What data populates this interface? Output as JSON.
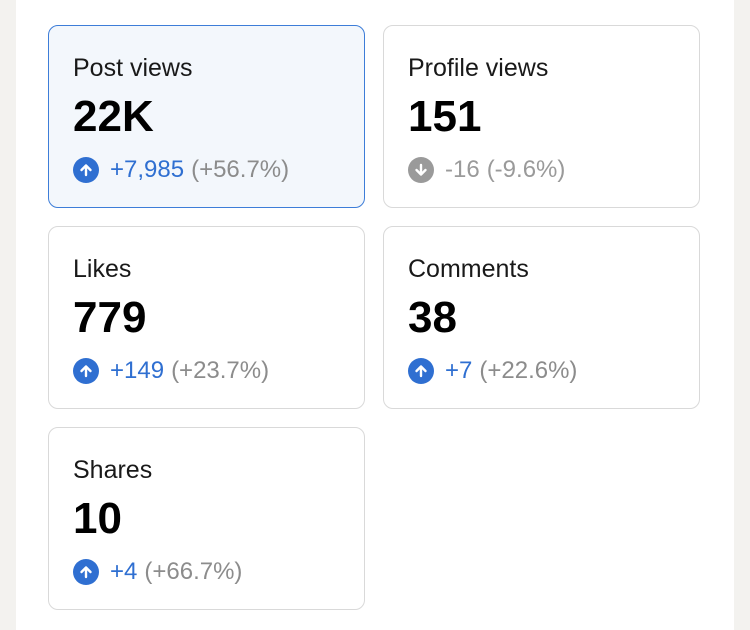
{
  "colors": {
    "positive": "#2f6fd1",
    "negative": "#9a9a9a"
  },
  "cards": [
    {
      "label": "Post views",
      "value": "22K",
      "direction": "up",
      "delta": "+7,985",
      "percent": "(+56.7%)",
      "selected": true
    },
    {
      "label": "Profile views",
      "value": "151",
      "direction": "down",
      "delta": "-16",
      "percent": "(-9.6%)",
      "selected": false
    },
    {
      "label": "Likes",
      "value": "779",
      "direction": "up",
      "delta": "+149",
      "percent": "(+23.7%)",
      "selected": false
    },
    {
      "label": "Comments",
      "value": "38",
      "direction": "up",
      "delta": "+7",
      "percent": "(+22.6%)",
      "selected": false
    },
    {
      "label": "Shares",
      "value": "10",
      "direction": "up",
      "delta": "+4",
      "percent": "(+66.7%)",
      "selected": false
    }
  ]
}
